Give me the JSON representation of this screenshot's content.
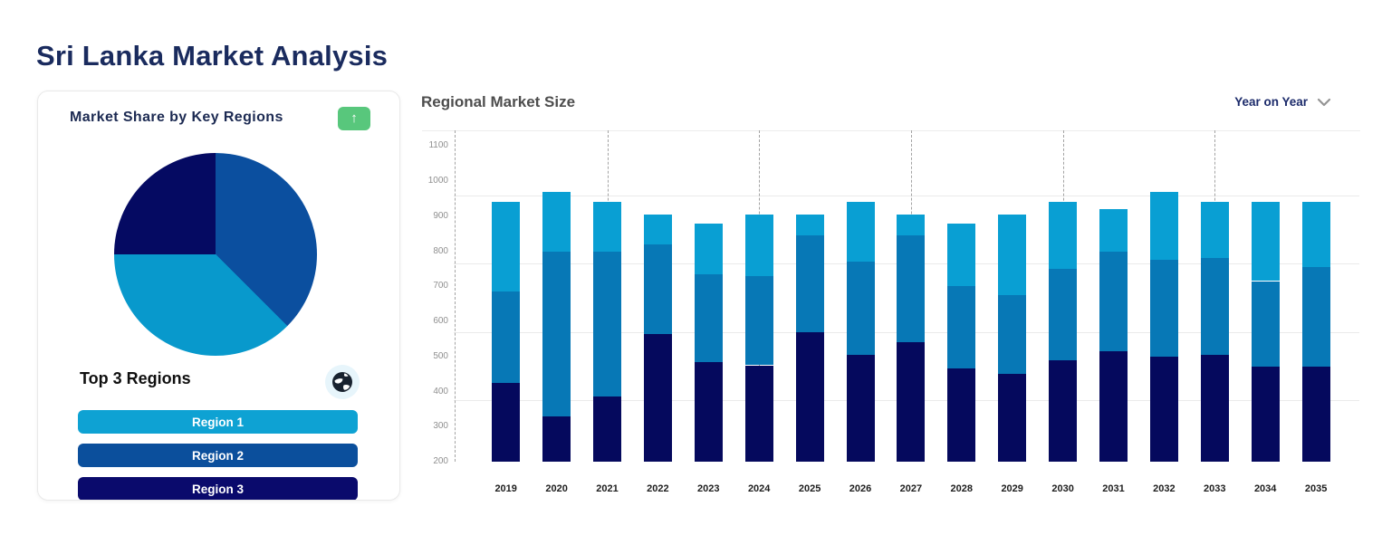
{
  "page": {
    "title": "Sri Lanka Market Analysis"
  },
  "market_share_card": {
    "subtitle": "Top 3 Regions",
    "legend": [
      {
        "label": "Region 1",
        "color": "#0ea2d3"
      },
      {
        "label": "Region 2",
        "color": "#0b4f9c"
      },
      {
        "label": "Region 3",
        "color": "#0a0a6c"
      }
    ]
  },
  "regional_chart": {
    "dropdown_label": "Year on Year"
  },
  "icons": {
    "trend_button": "arrow-up",
    "arrow_up_glyph": "↑",
    "dropdown_icon": "chevron-down",
    "subtitle_icon": "globe"
  },
  "colors": {
    "title_navy": "#1a2b5e",
    "green_button": "#58c77c",
    "grid_line": "#eaeaea",
    "dashed_line": "#a3a3a3"
  },
  "chart_data": [
    {
      "type": "pie",
      "title": "Market Share by Key Regions",
      "start_angle_deg": 0,
      "clockwise": true,
      "slices": [
        {
          "label": "Region 2",
          "value": 37.5,
          "color": "#0b4f9f"
        },
        {
          "label": "Region 1",
          "value": 37.5,
          "color": "#0899cc"
        },
        {
          "label": "Region 3",
          "value": 25.0,
          "color": "#050a62"
        }
      ]
    },
    {
      "type": "bar",
      "stacked": true,
      "title": "Regional Market Size",
      "x": [
        2019,
        2020,
        2021,
        2022,
        2023,
        2024,
        2025,
        2026,
        2027,
        2028,
        2029,
        2030,
        2031,
        2032,
        2033,
        2034,
        2035
      ],
      "baseline": 200,
      "ylim": [
        200,
        1145
      ],
      "yticks": [
        200,
        300,
        400,
        500,
        600,
        700,
        800,
        900,
        1000,
        1100
      ],
      "ygrid": [
        375,
        570,
        765,
        960
      ],
      "xgrid_years": [
        2021,
        2024,
        2027,
        2030,
        2033
      ],
      "series": [
        {
          "name": "stack-bottom",
          "color": "#05095d",
          "values": [
            225,
            130,
            185,
            365,
            285,
            275,
            370,
            305,
            340,
            265,
            250,
            290,
            315,
            300,
            305,
            270,
            270
          ]
        },
        {
          "name": "stack-middle",
          "color": "#0778b6",
          "values": [
            260,
            470,
            415,
            255,
            250,
            255,
            275,
            265,
            305,
            235,
            225,
            260,
            285,
            275,
            275,
            245,
            285
          ]
        },
        {
          "name": "stack-top",
          "color": "#099fd3",
          "values": [
            255,
            170,
            140,
            85,
            145,
            175,
            60,
            170,
            60,
            180,
            230,
            190,
            120,
            195,
            160,
            225,
            185
          ]
        }
      ],
      "stack_tops_cumulative_note": "bars rise from baseline 200; e.g. 2019: 425 / 685 / 940"
    }
  ]
}
